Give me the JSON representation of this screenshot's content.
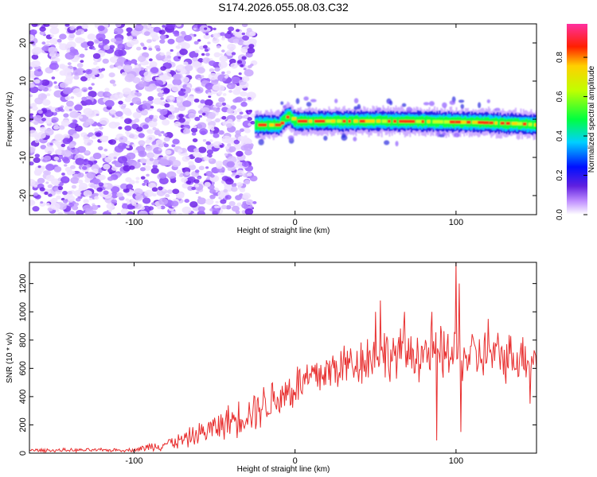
{
  "title": "S174.2026.055.08.03.C32",
  "chart_data": [
    {
      "type": "heatmap",
      "xlabel": "Height of straight line (km)",
      "ylabel": "Frequency (Hz)",
      "xlim": [
        -165,
        150
      ],
      "ylim": [
        -25,
        25
      ],
      "xticks": [
        -100,
        0,
        100
      ],
      "yticks": [
        -20,
        -10,
        0,
        10,
        20
      ],
      "colorbar": {
        "label": "Normalized spectral amplitude",
        "range": [
          0,
          0.97
        ],
        "ticks": [
          0.0,
          0.2,
          0.4,
          0.6,
          0.8
        ]
      },
      "noise_region_x": [
        -165,
        -25
      ],
      "blank_region_x": [
        -25,
        150
      ],
      "ridge": [
        {
          "x": -25,
          "y": -1.5
        },
        {
          "x": -20,
          "y": -1.5
        },
        {
          "x": -10,
          "y": -1.5
        },
        {
          "x": -6,
          "y": 0.5
        },
        {
          "x": -4,
          "y": 0.8
        },
        {
          "x": 0,
          "y": -0.5
        },
        {
          "x": 20,
          "y": -0.5
        },
        {
          "x": 50,
          "y": -0.5
        },
        {
          "x": 80,
          "y": -0.6
        },
        {
          "x": 110,
          "y": -0.8
        },
        {
          "x": 140,
          "y": -1.2
        },
        {
          "x": 150,
          "y": -1.5
        }
      ]
    },
    {
      "type": "line",
      "xlabel": "Height of straight line (km)",
      "ylabel": "SNR (10 * v/v)",
      "xlim": [
        -165,
        150
      ],
      "ylim": [
        0,
        1350
      ],
      "xticks": [
        -100,
        0,
        100
      ],
      "yticks": [
        0,
        200,
        400,
        600,
        800,
        1000,
        1200
      ],
      "series": [
        {
          "color": "#e83030",
          "envelope": [
            {
              "x": -165,
              "mean": 20,
              "spread": 15
            },
            {
              "x": -100,
              "mean": 22,
              "spread": 15
            },
            {
              "x": -90,
              "mean": 45,
              "spread": 40
            },
            {
              "x": -70,
              "mean": 90,
              "spread": 70
            },
            {
              "x": -50,
              "mean": 180,
              "spread": 120
            },
            {
              "x": -30,
              "mean": 280,
              "spread": 170
            },
            {
              "x": -10,
              "mean": 400,
              "spread": 200
            },
            {
              "x": 10,
              "mean": 530,
              "spread": 200
            },
            {
              "x": 30,
              "mean": 620,
              "spread": 200
            },
            {
              "x": 50,
              "mean": 690,
              "spread": 220
            },
            {
              "x": 80,
              "mean": 710,
              "spread": 230
            },
            {
              "x": 110,
              "mean": 690,
              "spread": 220
            },
            {
              "x": 150,
              "mean": 680,
              "spread": 200
            }
          ],
          "spikes": [
            {
              "x": 50,
              "y": 1000
            },
            {
              "x": 53,
              "y": 1080
            },
            {
              "x": 68,
              "y": 1000
            },
            {
              "x": 85,
              "y": 1000
            },
            {
              "x": 88,
              "y": 90
            },
            {
              "x": 100,
              "y": 1350
            },
            {
              "x": 102,
              "y": 1200
            },
            {
              "x": 103,
              "y": 150
            },
            {
              "x": 120,
              "y": 950
            },
            {
              "x": 146,
              "y": 350
            }
          ]
        }
      ]
    }
  ]
}
